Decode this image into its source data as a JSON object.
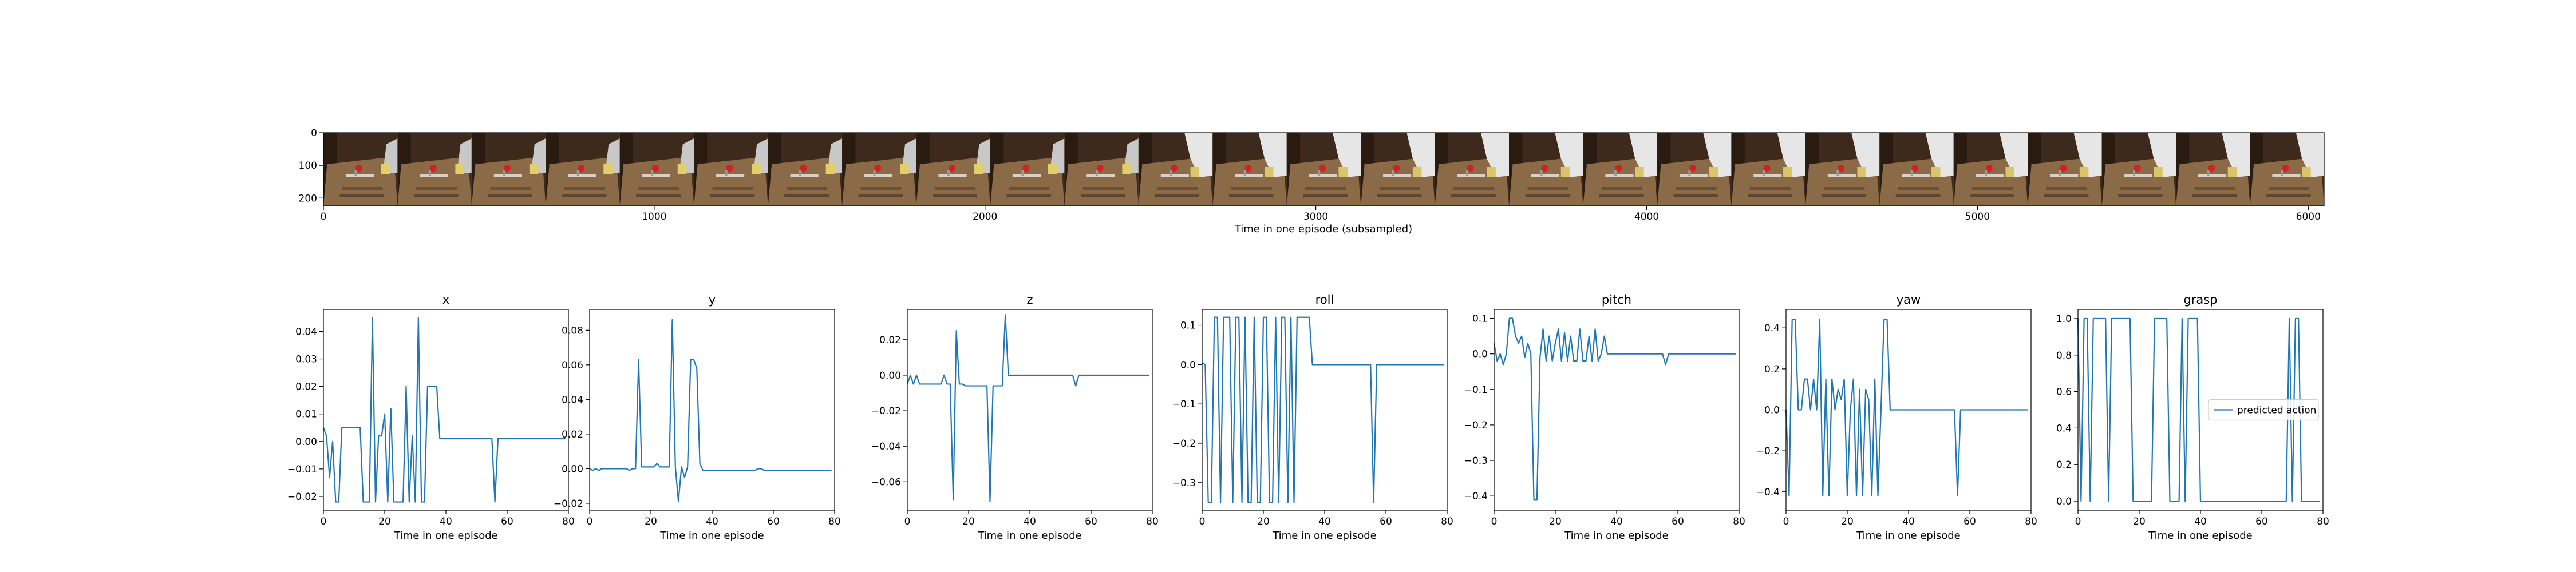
{
  "colors": {
    "series": "#1f77b4",
    "axis": "#000000",
    "background": "#ffffff"
  },
  "filmstrip": {
    "xlabel": "Time in one episode (subsampled)",
    "x_ticks": [
      "0",
      "1000",
      "2000",
      "3000",
      "4000",
      "5000",
      "6000"
    ],
    "y_ticks": [
      "0",
      "100",
      "200"
    ],
    "xlim": [
      0,
      6048
    ],
    "ylim": [
      0,
      224
    ],
    "frame_count": 27,
    "frames_with_arm": [
      11,
      12,
      13,
      14,
      15,
      16,
      17,
      18,
      19,
      20,
      21,
      22,
      23,
      24,
      25,
      26
    ]
  },
  "chart_data": [
    {
      "type": "line",
      "title": "x",
      "xlabel": "Time in one episode",
      "xlim": [
        0,
        80
      ],
      "ylim": [
        -0.025,
        0.048
      ],
      "x_ticks": [
        0,
        20,
        40,
        60,
        80
      ],
      "y_ticks": [
        -0.02,
        -0.01,
        0.0,
        0.01,
        0.02,
        0.03,
        0.04
      ],
      "tick_labels": [
        "−0.02",
        "−0.01",
        "0.00",
        "0.01",
        "0.02",
        "0.03",
        "0.04"
      ],
      "x_tick_labels": [
        "0",
        "20",
        "40",
        "60",
        "80"
      ],
      "x": [
        0,
        1,
        2,
        3,
        4,
        5,
        6,
        7,
        8,
        9,
        10,
        11,
        12,
        13,
        14,
        15,
        16,
        17,
        18,
        19,
        20,
        21,
        22,
        23,
        24,
        25,
        26,
        27,
        28,
        29,
        30,
        31,
        32,
        33,
        34,
        35,
        36,
        37,
        38,
        39,
        40,
        41,
        42,
        43,
        44,
        45,
        46,
        47,
        48,
        49,
        50,
        51,
        52,
        53,
        54,
        55,
        56,
        57,
        58,
        59,
        60,
        61,
        62,
        63,
        64,
        65,
        66,
        67,
        68,
        69,
        70,
        71,
        72,
        73,
        74,
        75,
        76,
        77,
        78,
        79
      ],
      "values": [
        0.005,
        0.002,
        -0.013,
        0.0,
        -0.022,
        -0.022,
        0.005,
        0.005,
        0.005,
        0.005,
        0.005,
        0.005,
        0.005,
        -0.022,
        -0.022,
        -0.022,
        0.045,
        -0.022,
        0.002,
        0.002,
        0.01,
        -0.022,
        0.012,
        -0.022,
        -0.022,
        -0.022,
        -0.022,
        0.02,
        -0.022,
        0.002,
        -0.022,
        0.045,
        -0.022,
        -0.022,
        0.02,
        0.02,
        0.02,
        0.02,
        0.001,
        0.001,
        0.001,
        0.001,
        0.001,
        0.001,
        0.001,
        0.001,
        0.001,
        0.001,
        0.001,
        0.001,
        0.001,
        0.001,
        0.001,
        0.001,
        0.001,
        0.001,
        -0.022,
        0.001,
        0.001,
        0.001,
        0.001,
        0.001,
        0.001,
        0.001,
        0.001,
        0.001,
        0.001,
        0.001,
        0.001,
        0.001,
        0.001,
        0.001,
        0.001,
        0.001,
        0.001,
        0.001,
        0.001,
        0.001,
        0.001,
        0.001
      ]
    },
    {
      "type": "line",
      "title": "y",
      "xlabel": "Time in one episode",
      "xlim": [
        0,
        80
      ],
      "ylim": [
        -0.024,
        0.092
      ],
      "x_ticks": [
        0,
        20,
        40,
        60,
        80
      ],
      "y_ticks": [
        -0.02,
        0.0,
        0.02,
        0.04,
        0.06,
        0.08
      ],
      "tick_labels": [
        "−0.02",
        "0.00",
        "0.02",
        "0.04",
        "0.06",
        "0.08"
      ],
      "x_tick_labels": [
        "0",
        "20",
        "40",
        "60",
        "80"
      ],
      "x": [
        0,
        1,
        2,
        3,
        4,
        5,
        6,
        7,
        8,
        9,
        10,
        11,
        12,
        13,
        14,
        15,
        16,
        17,
        18,
        19,
        20,
        21,
        22,
        23,
        24,
        25,
        26,
        27,
        28,
        29,
        30,
        31,
        32,
        33,
        34,
        35,
        36,
        37,
        38,
        39,
        40,
        41,
        42,
        43,
        44,
        45,
        46,
        47,
        48,
        49,
        50,
        51,
        52,
        53,
        54,
        55,
        56,
        57,
        58,
        59,
        60,
        61,
        62,
        63,
        64,
        65,
        66,
        67,
        68,
        69,
        70,
        71,
        72,
        73,
        74,
        75,
        76,
        77,
        78,
        79
      ],
      "values": [
        0.0,
        -0.001,
        0.0,
        -0.001,
        0.0,
        0.0,
        0.0,
        0.0,
        0.0,
        0.0,
        0.0,
        0.0,
        0.0,
        -0.001,
        0.0,
        0.0,
        0.063,
        0.001,
        0.001,
        0.001,
        0.001,
        0.001,
        0.003,
        0.001,
        0.001,
        0.001,
        0.001,
        0.086,
        0.001,
        -0.019,
        0.001,
        -0.005,
        0.001,
        0.063,
        0.063,
        0.058,
        0.003,
        -0.001,
        -0.001,
        -0.001,
        -0.001,
        -0.001,
        -0.001,
        -0.001,
        -0.001,
        -0.001,
        -0.001,
        -0.001,
        -0.001,
        -0.001,
        -0.001,
        -0.001,
        -0.001,
        -0.001,
        -0.001,
        0.0,
        0.0,
        -0.001,
        -0.001,
        -0.001,
        -0.001,
        -0.001,
        -0.001,
        -0.001,
        -0.001,
        -0.001,
        -0.001,
        -0.001,
        -0.001,
        -0.001,
        -0.001,
        -0.001,
        -0.001,
        -0.001,
        -0.001,
        -0.001,
        -0.001,
        -0.001,
        -0.001,
        -0.001
      ]
    },
    {
      "type": "line",
      "title": "z",
      "xlabel": "Time in one episode",
      "xlim": [
        0,
        80
      ],
      "ylim": [
        -0.076,
        0.037
      ],
      "x_ticks": [
        0,
        20,
        40,
        60,
        80
      ],
      "y_ticks": [
        -0.06,
        -0.04,
        -0.02,
        0.0,
        0.02
      ],
      "tick_labels": [
        "−0.06",
        "−0.04",
        "−0.02",
        "0.00",
        "0.02"
      ],
      "x_tick_labels": [
        "0",
        "20",
        "40",
        "60",
        "80"
      ],
      "x": [
        0,
        1,
        2,
        3,
        4,
        5,
        6,
        7,
        8,
        9,
        10,
        11,
        12,
        13,
        14,
        15,
        16,
        17,
        18,
        19,
        20,
        21,
        22,
        23,
        24,
        25,
        26,
        27,
        28,
        29,
        30,
        31,
        32,
        33,
        34,
        35,
        36,
        37,
        38,
        39,
        40,
        41,
        42,
        43,
        44,
        45,
        46,
        47,
        48,
        49,
        50,
        51,
        52,
        53,
        54,
        55,
        56,
        57,
        58,
        59,
        60,
        61,
        62,
        63,
        64,
        65,
        66,
        67,
        68,
        69,
        70,
        71,
        72,
        73,
        74,
        75,
        76,
        77,
        78,
        79
      ],
      "values": [
        -0.005,
        0.0,
        -0.005,
        0.0,
        -0.005,
        -0.005,
        -0.005,
        -0.005,
        -0.005,
        -0.005,
        -0.005,
        -0.005,
        0.0,
        -0.005,
        -0.005,
        -0.07,
        0.025,
        -0.005,
        -0.005,
        -0.006,
        -0.006,
        -0.006,
        -0.006,
        -0.006,
        -0.006,
        -0.006,
        -0.006,
        -0.071,
        -0.006,
        -0.006,
        -0.006,
        -0.006,
        0.034,
        0.0,
        0.0,
        0.0,
        0.0,
        0.0,
        0.0,
        0.0,
        0.0,
        0.0,
        0.0,
        0.0,
        0.0,
        0.0,
        0.0,
        0.0,
        0.0,
        0.0,
        0.0,
        0.0,
        0.0,
        0.0,
        0.0,
        -0.006,
        0.0,
        0.0,
        0.0,
        0.0,
        0.0,
        0.0,
        0.0,
        0.0,
        0.0,
        0.0,
        0.0,
        0.0,
        0.0,
        0.0,
        0.0,
        0.0,
        0.0,
        0.0,
        0.0,
        0.0,
        0.0,
        0.0,
        0.0,
        0.0
      ]
    },
    {
      "type": "line",
      "title": "roll",
      "xlabel": "Time in one episode",
      "xlim": [
        0,
        80
      ],
      "ylim": [
        -0.37,
        0.14
      ],
      "x_ticks": [
        0,
        20,
        40,
        60,
        80
      ],
      "y_ticks": [
        -0.3,
        -0.2,
        -0.1,
        0.0,
        0.1
      ],
      "tick_labels": [
        "−0.3",
        "−0.2",
        "−0.1",
        "0.0",
        "0.1"
      ],
      "x_tick_labels": [
        "0",
        "20",
        "40",
        "60",
        "80"
      ],
      "x": [
        0,
        1,
        2,
        3,
        4,
        5,
        6,
        7,
        8,
        9,
        10,
        11,
        12,
        13,
        14,
        15,
        16,
        17,
        18,
        19,
        20,
        21,
        22,
        23,
        24,
        25,
        26,
        27,
        28,
        29,
        30,
        31,
        32,
        33,
        34,
        35,
        36,
        37,
        38,
        39,
        40,
        41,
        42,
        43,
        44,
        45,
        46,
        47,
        48,
        49,
        50,
        51,
        52,
        53,
        54,
        55,
        56,
        57,
        58,
        59,
        60,
        61,
        62,
        63,
        64,
        65,
        66,
        67,
        68,
        69,
        70,
        71,
        72,
        73,
        74,
        75,
        76,
        77,
        78,
        79
      ],
      "values": [
        0.005,
        0.0,
        -0.35,
        -0.35,
        0.12,
        0.12,
        -0.35,
        0.12,
        0.12,
        0.12,
        -0.35,
        0.12,
        0.12,
        -0.35,
        0.12,
        -0.35,
        -0.35,
        0.12,
        -0.35,
        -0.35,
        0.12,
        0.12,
        -0.35,
        -0.35,
        0.12,
        -0.35,
        0.12,
        0.12,
        -0.35,
        0.12,
        -0.35,
        0.12,
        0.12,
        0.12,
        0.12,
        0.12,
        0.0,
        0.0,
        0.0,
        0.0,
        0.0,
        0.0,
        0.0,
        0.0,
        0.0,
        0.0,
        0.0,
        0.0,
        0.0,
        0.0,
        0.0,
        0.0,
        0.0,
        0.0,
        0.0,
        0.0,
        -0.35,
        0.0,
        0.0,
        0.0,
        0.0,
        0.0,
        0.0,
        0.0,
        0.0,
        0.0,
        0.0,
        0.0,
        0.0,
        0.0,
        0.0,
        0.0,
        0.0,
        0.0,
        0.0,
        0.0,
        0.0,
        0.0,
        0.0,
        0.0
      ]
    },
    {
      "type": "line",
      "title": "pitch",
      "xlabel": "Time in one episode",
      "xlim": [
        0,
        80
      ],
      "ylim": [
        -0.44,
        0.125
      ],
      "x_ticks": [
        0,
        20,
        40,
        60,
        80
      ],
      "y_ticks": [
        -0.4,
        -0.3,
        -0.2,
        -0.1,
        0.0,
        0.1
      ],
      "tick_labels": [
        "−0.4",
        "−0.3",
        "−0.2",
        "−0.1",
        "0.0",
        "0.1"
      ],
      "x_tick_labels": [
        "0",
        "20",
        "40",
        "60",
        "80"
      ],
      "x": [
        0,
        1,
        2,
        3,
        4,
        5,
        6,
        7,
        8,
        9,
        10,
        11,
        12,
        13,
        14,
        15,
        16,
        17,
        18,
        19,
        20,
        21,
        22,
        23,
        24,
        25,
        26,
        27,
        28,
        29,
        30,
        31,
        32,
        33,
        34,
        35,
        36,
        37,
        38,
        39,
        40,
        41,
        42,
        43,
        44,
        45,
        46,
        47,
        48,
        49,
        50,
        51,
        52,
        53,
        54,
        55,
        56,
        57,
        58,
        59,
        60,
        61,
        62,
        63,
        64,
        65,
        66,
        67,
        68,
        69,
        70,
        71,
        72,
        73,
        74,
        75,
        76,
        77,
        78,
        79
      ],
      "values": [
        0.03,
        -0.02,
        0.0,
        -0.03,
        0.0,
        0.1,
        0.1,
        0.05,
        0.03,
        0.05,
        -0.01,
        0.03,
        0.0,
        -0.41,
        -0.41,
        -0.01,
        0.07,
        -0.02,
        0.05,
        -0.02,
        0.03,
        0.07,
        -0.02,
        0.06,
        -0.02,
        0.05,
        -0.02,
        -0.02,
        0.07,
        -0.02,
        -0.02,
        0.05,
        -0.02,
        0.07,
        -0.02,
        0.0,
        0.05,
        0.0,
        0.0,
        0.0,
        0.0,
        0.0,
        0.0,
        0.0,
        0.0,
        0.0,
        0.0,
        0.0,
        0.0,
        0.0,
        0.0,
        0.0,
        0.0,
        0.0,
        0.0,
        0.0,
        -0.03,
        0.0,
        0.0,
        0.0,
        0.0,
        0.0,
        0.0,
        0.0,
        0.0,
        0.0,
        0.0,
        0.0,
        0.0,
        0.0,
        0.0,
        0.0,
        0.0,
        0.0,
        0.0,
        0.0,
        0.0,
        0.0,
        0.0,
        0.0
      ]
    },
    {
      "type": "line",
      "title": "yaw",
      "xlabel": "Time in one episode",
      "xlim": [
        0,
        80
      ],
      "ylim": [
        -0.49,
        0.49
      ],
      "x_ticks": [
        0,
        20,
        40,
        60,
        80
      ],
      "y_ticks": [
        -0.4,
        -0.2,
        0.0,
        0.2,
        0.4
      ],
      "tick_labels": [
        "−0.4",
        "−0.2",
        "0.0",
        "0.2",
        "0.4"
      ],
      "x_tick_labels": [
        "0",
        "20",
        "40",
        "60",
        "80"
      ],
      "x": [
        0,
        1,
        2,
        3,
        4,
        5,
        6,
        7,
        8,
        9,
        10,
        11,
        12,
        13,
        14,
        15,
        16,
        17,
        18,
        19,
        20,
        21,
        22,
        23,
        24,
        25,
        26,
        27,
        28,
        29,
        30,
        31,
        32,
        33,
        34,
        35,
        36,
        37,
        38,
        39,
        40,
        41,
        42,
        43,
        44,
        45,
        46,
        47,
        48,
        49,
        50,
        51,
        52,
        53,
        54,
        55,
        56,
        57,
        58,
        59,
        60,
        61,
        62,
        63,
        64,
        65,
        66,
        67,
        68,
        69,
        70,
        71,
        72,
        73,
        74,
        75,
        76,
        77,
        78,
        79
      ],
      "values": [
        0.0,
        -0.42,
        0.44,
        0.44,
        0.0,
        0.0,
        0.15,
        0.15,
        0.0,
        0.15,
        0.0,
        0.44,
        -0.42,
        0.15,
        -0.42,
        0.15,
        0.0,
        0.1,
        0.05,
        0.15,
        -0.42,
        0.0,
        0.15,
        -0.42,
        0.1,
        -0.42,
        0.1,
        0.05,
        -0.42,
        0.15,
        -0.42,
        0.0,
        0.44,
        0.44,
        0.0,
        0.0,
        0.0,
        0.0,
        0.0,
        0.0,
        0.0,
        0.0,
        0.0,
        0.0,
        0.0,
        0.0,
        0.0,
        0.0,
        0.0,
        0.0,
        0.0,
        0.0,
        0.0,
        0.0,
        0.0,
        0.0,
        -0.42,
        0.0,
        0.0,
        0.0,
        0.0,
        0.0,
        0.0,
        0.0,
        0.0,
        0.0,
        0.0,
        0.0,
        0.0,
        0.0,
        0.0,
        0.0,
        0.0,
        0.0,
        0.0,
        0.0,
        0.0,
        0.0,
        0.0,
        0.0
      ]
    },
    {
      "type": "line",
      "title": "grasp",
      "xlabel": "Time in one episode",
      "xlim": [
        0,
        80
      ],
      "ylim": [
        -0.05,
        1.05
      ],
      "x_ticks": [
        0,
        20,
        40,
        60,
        80
      ],
      "y_ticks": [
        0.0,
        0.2,
        0.4,
        0.6,
        0.8,
        1.0
      ],
      "tick_labels": [
        "0.0",
        "0.2",
        "0.4",
        "0.6",
        "0.8",
        "1.0"
      ],
      "x_tick_labels": [
        "0",
        "20",
        "40",
        "60",
        "80"
      ],
      "legend": "predicted action",
      "legend_loc": "center-right",
      "x": [
        0,
        1,
        2,
        3,
        4,
        5,
        6,
        7,
        8,
        9,
        10,
        11,
        12,
        13,
        14,
        15,
        16,
        17,
        18,
        19,
        20,
        21,
        22,
        23,
        24,
        25,
        26,
        27,
        28,
        29,
        30,
        31,
        32,
        33,
        34,
        35,
        36,
        37,
        38,
        39,
        40,
        41,
        42,
        43,
        44,
        45,
        46,
        47,
        48,
        49,
        50,
        51,
        52,
        53,
        54,
        55,
        56,
        57,
        58,
        59,
        60,
        61,
        62,
        63,
        64,
        65,
        66,
        67,
        68,
        69,
        70,
        71,
        72,
        73,
        74,
        75,
        76,
        77,
        78,
        79
      ],
      "values": [
        1,
        0,
        1,
        1,
        0,
        1,
        1,
        1,
        1,
        1,
        0,
        1,
        1,
        1,
        1,
        1,
        1,
        1,
        0,
        0,
        0,
        0,
        0,
        0,
        0,
        1,
        1,
        1,
        1,
        1,
        0,
        0,
        0,
        0,
        1,
        0,
        1,
        1,
        1,
        1,
        0,
        0,
        0,
        0,
        0,
        0,
        0,
        0,
        0,
        0,
        0,
        0,
        0,
        0,
        0,
        0,
        0,
        0,
        0,
        0,
        0,
        0,
        0,
        0,
        0,
        0,
        0,
        0,
        0,
        1,
        0,
        1,
        1,
        0,
        0,
        0,
        0,
        0,
        0,
        0
      ]
    }
  ]
}
